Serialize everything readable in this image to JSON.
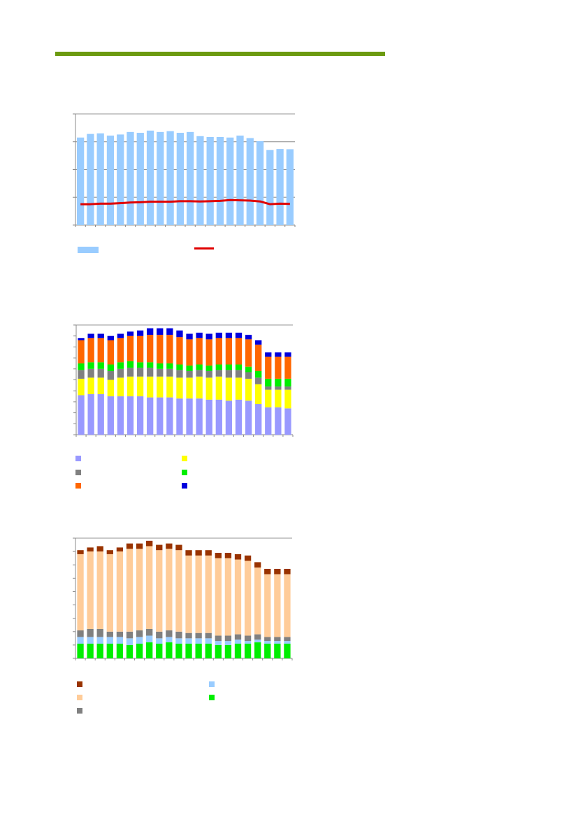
{
  "colors": {
    "rule": "#6b9a0f",
    "axis": "#8a8a8a",
    "grid": "#9a9a9a"
  },
  "chart_data": [
    {
      "type": "bar",
      "subtype": "bar-with-line",
      "categories": [
        "",
        "",
        "",
        "",
        "",
        "",
        "",
        "",
        "",
        "",
        "",
        "",
        "",
        "",
        "",
        "",
        "",
        "",
        "",
        "",
        "",
        ""
      ],
      "ylim": [
        0,
        4
      ],
      "grid": true,
      "legend_position": "bottom",
      "series": [
        {
          "kind": "bar",
          "color": "#99ccff",
          "values": [
            3.15,
            3.28,
            3.3,
            3.22,
            3.26,
            3.35,
            3.32,
            3.4,
            3.35,
            3.38,
            3.32,
            3.35,
            3.2,
            3.17,
            3.17,
            3.15,
            3.22,
            3.13,
            3.02,
            2.7,
            2.74,
            2.73
          ]
        },
        {
          "kind": "line",
          "color": "#e00000",
          "values": [
            0.75,
            0.75,
            0.77,
            0.77,
            0.79,
            0.81,
            0.82,
            0.84,
            0.84,
            0.84,
            0.86,
            0.86,
            0.85,
            0.86,
            0.87,
            0.9,
            0.89,
            0.88,
            0.85,
            0.75,
            0.77,
            0.76
          ]
        }
      ]
    },
    {
      "type": "bar",
      "subtype": "stacked",
      "categories": [
        "",
        "",
        "",
        "",
        "",
        "",
        "",
        "",
        "",
        "",
        "",
        "",
        "",
        "",
        "",
        "",
        "",
        "",
        "",
        "",
        "",
        ""
      ],
      "ylim": [
        0,
        100
      ],
      "grid": true,
      "legend_position": "bottom",
      "series": [
        {
          "color": "#9999ff",
          "values": [
            36,
            37,
            37,
            35,
            35,
            35,
            35,
            34,
            34,
            34,
            33,
            33,
            33,
            32,
            32,
            31,
            32,
            31,
            28,
            25,
            25,
            24
          ]
        },
        {
          "color": "#ffff00",
          "values": [
            15,
            15,
            15,
            15,
            17,
            18,
            18,
            19,
            19,
            19,
            19,
            19,
            20,
            20,
            21,
            21,
            20,
            20,
            18,
            16,
            16,
            17
          ]
        },
        {
          "color": "#808080",
          "values": [
            8,
            8,
            8,
            8,
            8,
            8,
            8,
            8,
            7,
            7,
            7,
            6,
            6,
            6,
            6,
            7,
            7,
            6,
            6,
            3,
            3,
            3
          ]
        },
        {
          "color": "#00ee00",
          "values": [
            6,
            6,
            6,
            6,
            6,
            6,
            5,
            5,
            5,
            5,
            5,
            5,
            5,
            5,
            5,
            5,
            5,
            5,
            6,
            7,
            7,
            7
          ]
        },
        {
          "color": "#ff6600",
          "values": [
            21,
            22,
            22,
            22,
            22,
            23,
            24,
            25,
            26,
            26,
            25,
            24,
            24,
            24,
            24,
            24,
            24,
            25,
            24,
            20,
            20,
            20
          ]
        },
        {
          "color": "#0000dd",
          "values": [
            2,
            4,
            4,
            4,
            4,
            4,
            5,
            6,
            6,
            6,
            6,
            5,
            5,
            5,
            5,
            5,
            5,
            4,
            4,
            4,
            4,
            4
          ]
        }
      ]
    },
    {
      "type": "bar",
      "subtype": "stacked",
      "categories": [
        "",
        "",
        "",
        "",
        "",
        "",
        "",
        "",
        "",
        "",
        "",
        "",
        "",
        "",
        "",
        "",
        "",
        "",
        "",
        "",
        "",
        ""
      ],
      "ylim": [
        0,
        90
      ],
      "grid": true,
      "legend_position": "bottom",
      "series": [
        {
          "color": "#00ee00",
          "values": [
            11,
            11,
            11,
            11,
            11,
            10,
            11,
            12,
            11,
            12,
            11,
            11,
            11,
            11,
            10,
            10,
            11,
            11,
            12,
            11,
            11,
            11
          ]
        },
        {
          "color": "#99ccff",
          "values": [
            5,
            5,
            5,
            5,
            5,
            5,
            5,
            5,
            4,
            4,
            4,
            4,
            4,
            4,
            3,
            3,
            3,
            2,
            2,
            2,
            2,
            2
          ]
        },
        {
          "color": "#808080",
          "values": [
            5,
            6,
            6,
            4,
            4,
            5,
            5,
            5,
            5,
            5,
            5,
            4,
            4,
            4,
            4,
            4,
            4,
            4,
            4,
            3,
            3,
            3
          ]
        },
        {
          "color": "#ffcc99",
          "values": [
            57,
            58,
            58,
            58,
            60,
            62,
            61,
            62,
            61,
            61,
            61,
            58,
            58,
            58,
            58,
            58,
            56,
            56,
            50,
            47,
            47,
            47
          ]
        },
        {
          "color": "#993300",
          "values": [
            3,
            3,
            4,
            3,
            3,
            4,
            4,
            4,
            4,
            4,
            4,
            4,
            4,
            4,
            4,
            4,
            4,
            4,
            4,
            4,
            4,
            4
          ]
        }
      ]
    }
  ]
}
